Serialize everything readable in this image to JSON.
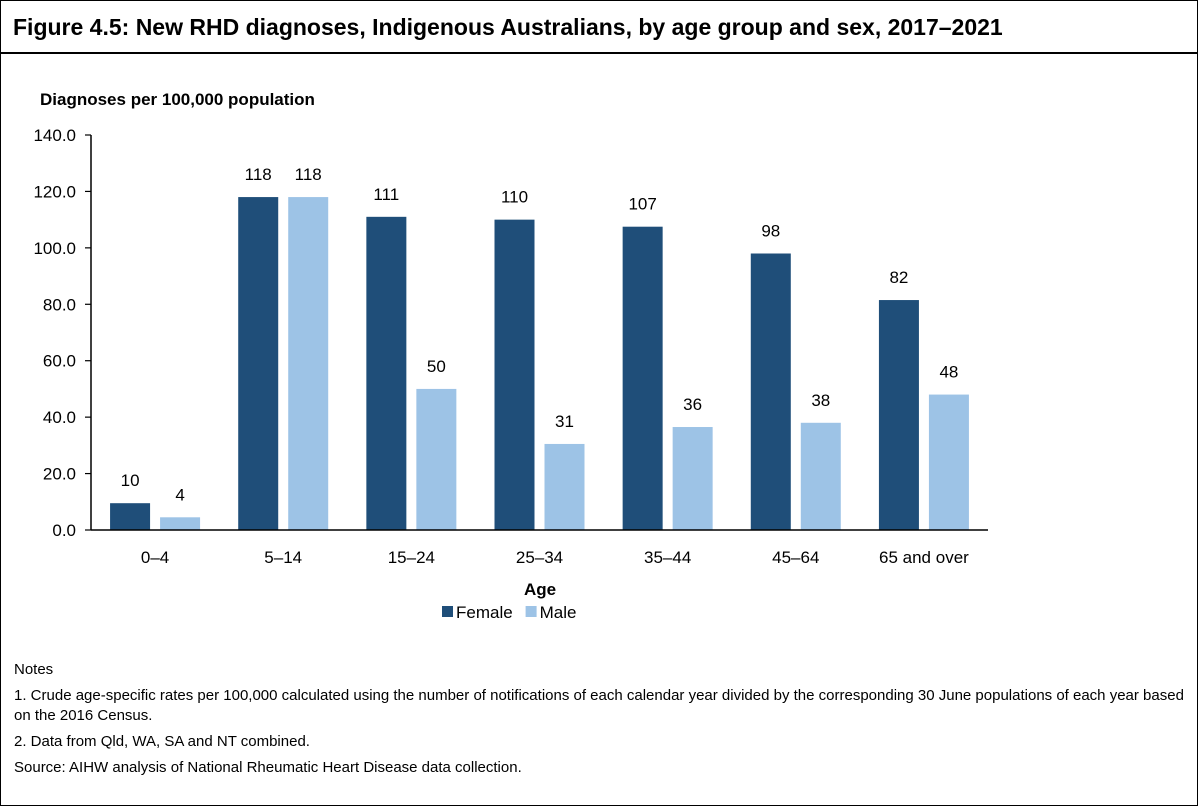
{
  "figure": {
    "title": "Figure 4.5: New RHD diagnoses, Indigenous Australians, by age group and sex, 2017–2021"
  },
  "chart_data": {
    "type": "bar",
    "title": "Figure 4.5: New RHD diagnoses, Indigenous Australians, by age group and sex, 2017–2021",
    "ylabel": "Diagnoses  per 100,000 population",
    "xlabel": "Age",
    "categories": [
      "0–4",
      "5–14",
      "15–24",
      "25–34",
      "35–44",
      "45–64",
      "65 and over"
    ],
    "series": [
      {
        "name": "Female",
        "color": "#1f4e79",
        "values": [
          9.5,
          118,
          111,
          110,
          107.5,
          98,
          81.5
        ],
        "labels": [
          "10",
          "118",
          "111",
          "110",
          "107",
          "98",
          "82"
        ]
      },
      {
        "name": "Male",
        "color": "#9dc3e6",
        "values": [
          4.5,
          118,
          50,
          30.5,
          36.5,
          38,
          48
        ],
        "labels": [
          "4",
          "118",
          "50",
          "31",
          "36",
          "38",
          "48"
        ]
      }
    ],
    "ylim": [
      0,
      140
    ],
    "yticks": [
      "0.0",
      "20.0",
      "40.0",
      "60.0",
      "80.0",
      "100.0",
      "120.0",
      "140.0"
    ],
    "grid": false,
    "legend_position": "bottom"
  },
  "notes": {
    "heading": "Notes",
    "items": [
      "1. Crude age-specific rates per 100,000 calculated using the number of notifications of each calendar year divided by the corresponding 30 June populations of each year based on the 2016 Census.",
      "2. Data from Qld, WA, SA and NT combined."
    ],
    "source": "Source: AIHW analysis of National Rheumatic Heart Disease data collection."
  }
}
